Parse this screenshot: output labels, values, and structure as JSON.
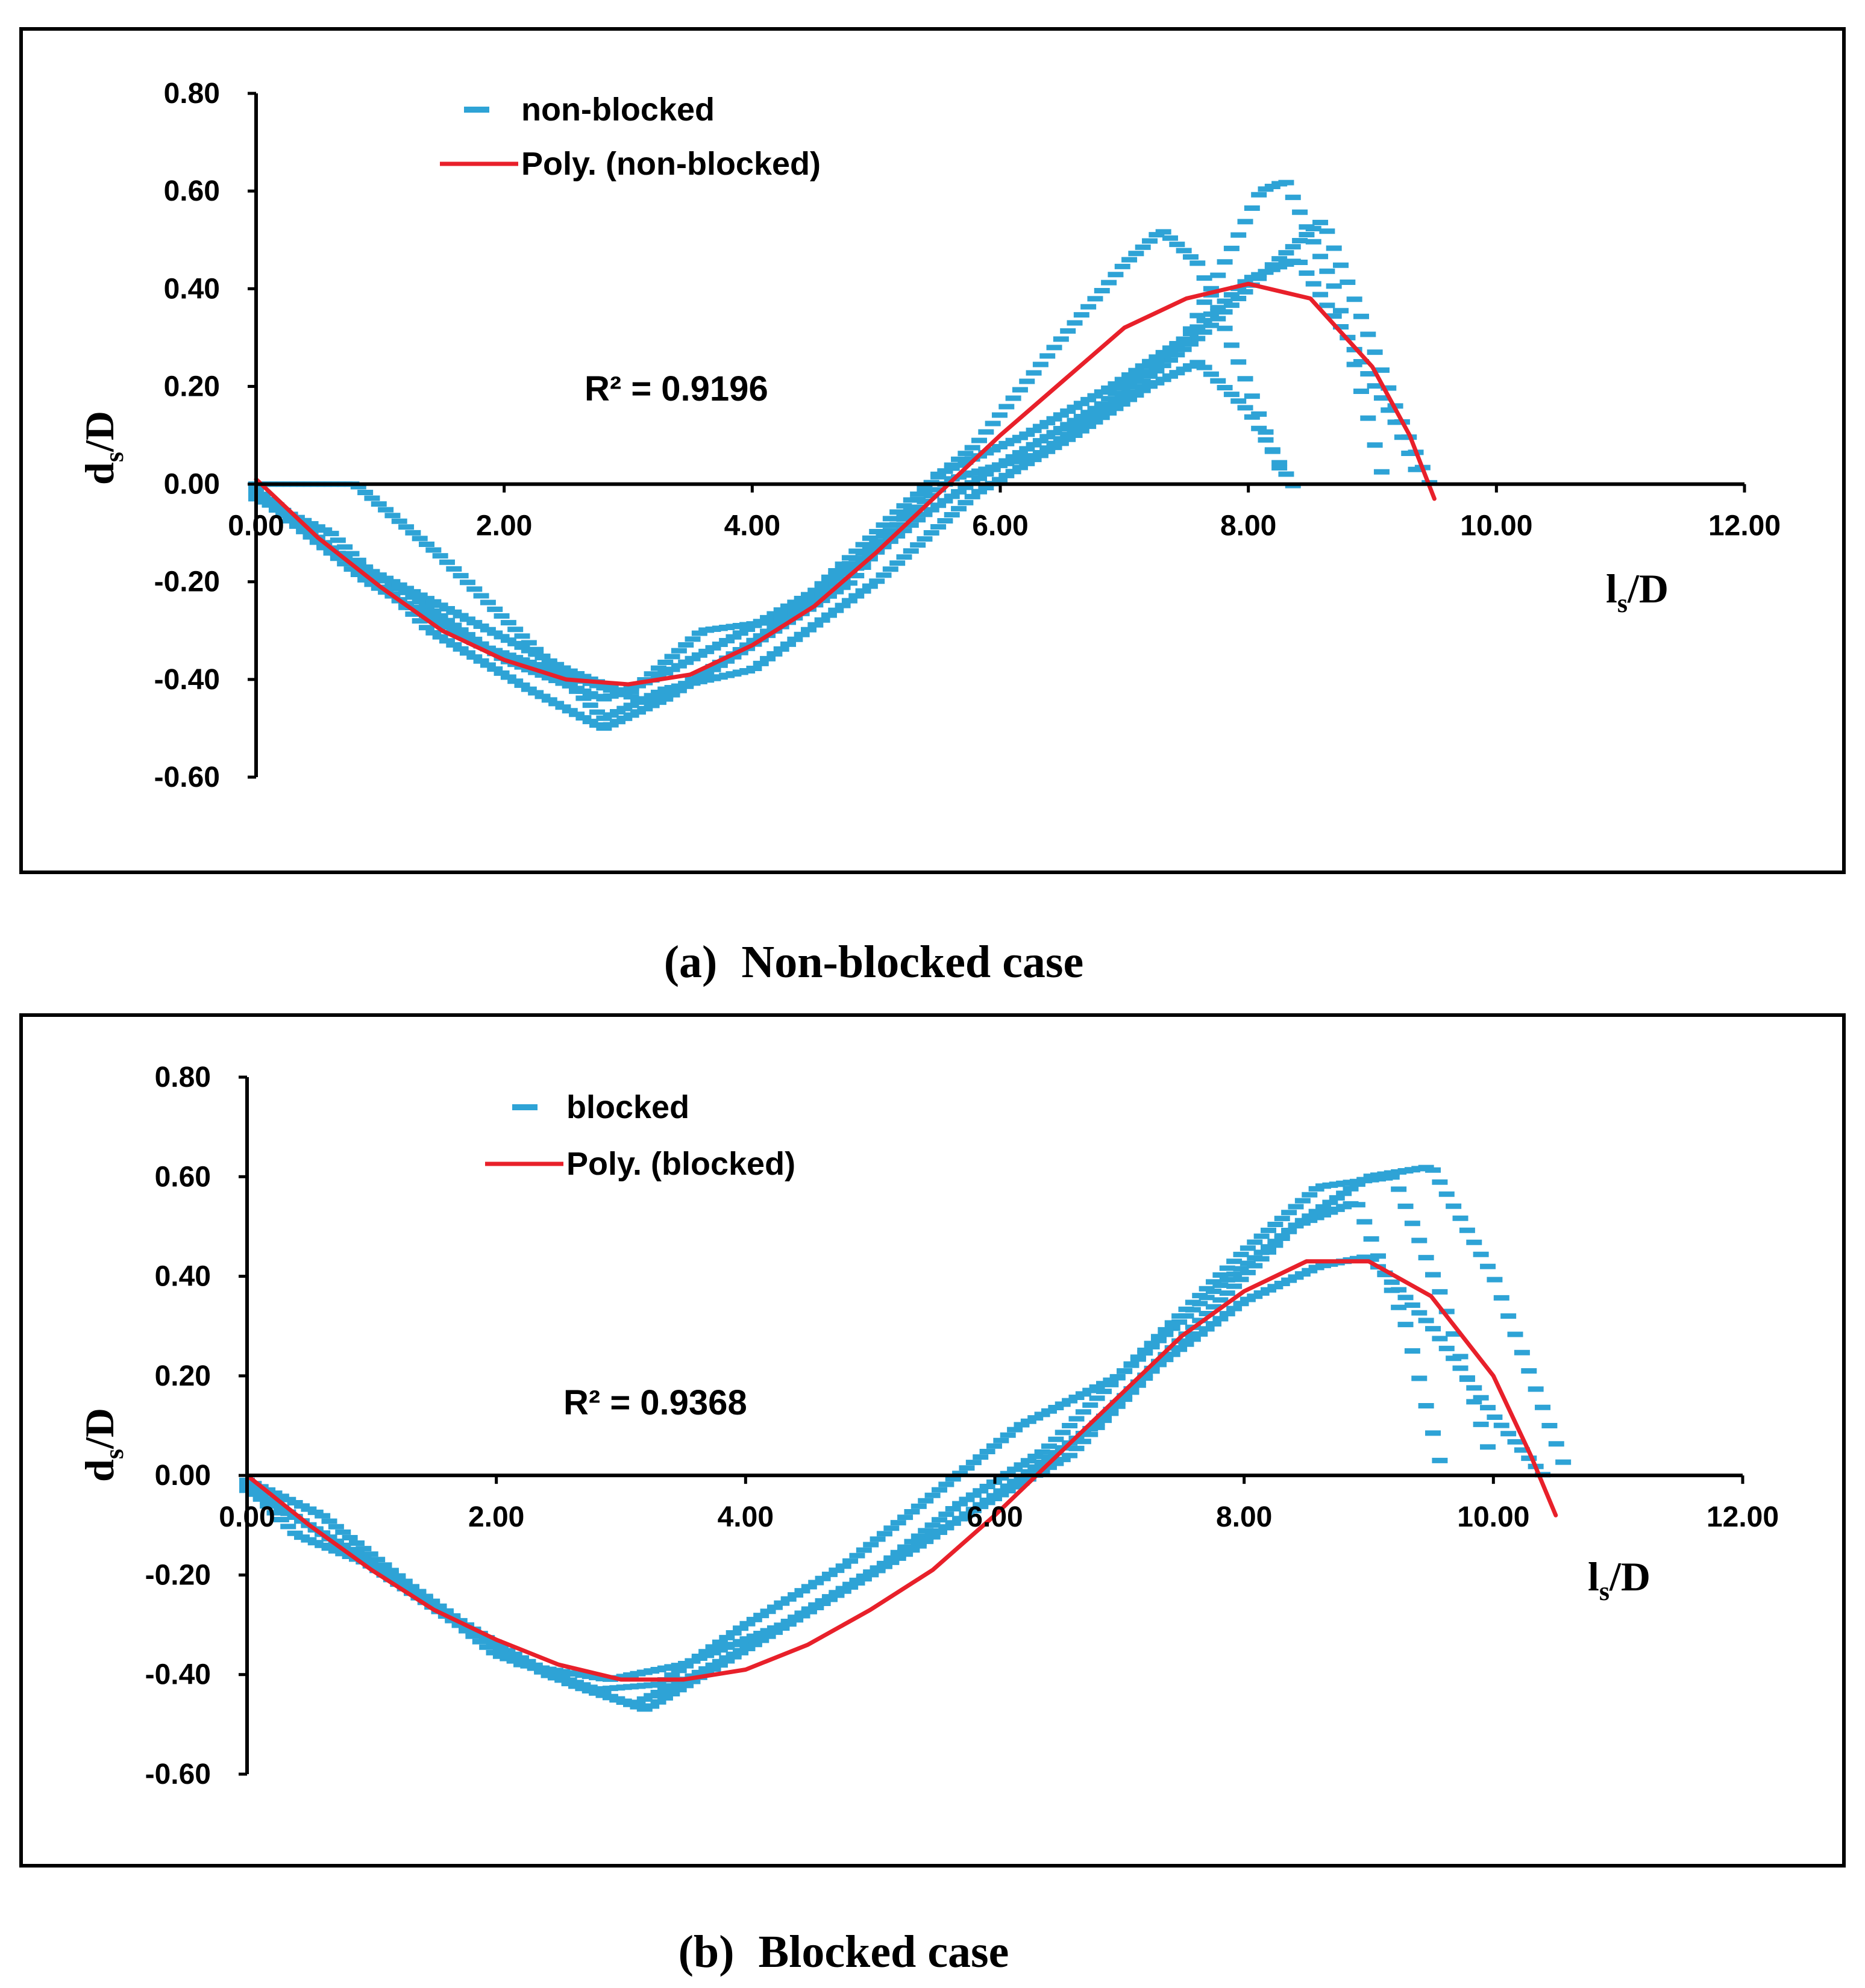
{
  "colors": {
    "data": "#2ea3d6",
    "fit": "#e8202a",
    "axis": "#000000",
    "frame": "#000000"
  },
  "chart_data": [
    {
      "id": "a",
      "type": "scatter",
      "caption_label": "(a)",
      "caption_text": "Non-blocked case",
      "legend": {
        "series": "non-blocked",
        "trend": "Poly. (non-blocked)"
      },
      "r2_text": "R² = 0.9196",
      "xlabel": {
        "main": "l",
        "sub": "s",
        "tail": "/D"
      },
      "ylabel": {
        "main": "d",
        "sub": "s",
        "tail": "/D"
      },
      "xlim": [
        0,
        12
      ],
      "ylim": [
        -0.6,
        0.8
      ],
      "xticks": [
        "0.00",
        "2.00",
        "4.00",
        "6.00",
        "8.00",
        "10.00",
        "12.00"
      ],
      "yticks": [
        "0.80",
        "0.60",
        "0.40",
        "0.20",
        "0.00",
        "-0.20",
        "-0.40",
        "-0.60"
      ],
      "profiles": [
        {
          "x": [
            0,
            0.8,
            1.5,
            2.3,
            2.8,
            3.3,
            4.0,
            5.0,
            5.8,
            6.6,
            7.2,
            7.6,
            8.0,
            8.4
          ],
          "y": [
            0,
            0,
            -0.15,
            -0.35,
            -0.48,
            -0.42,
            -0.38,
            -0.2,
            -0.02,
            0.1,
            0.2,
            0.25,
            0.15,
            -0.02
          ]
        },
        {
          "x": [
            0,
            0.5,
            1.2,
            2.0,
            2.8,
            3.2,
            3.8,
            4.5,
            5.2,
            5.8,
            6.5,
            7.0,
            7.3,
            7.6,
            8.0,
            8.3
          ],
          "y": [
            -0.02,
            -0.12,
            -0.22,
            -0.36,
            -0.44,
            -0.4,
            -0.32,
            -0.22,
            -0.05,
            0.08,
            0.3,
            0.45,
            0.52,
            0.45,
            0.2,
            0.0
          ]
        },
        {
          "x": [
            0,
            0.6,
            1.4,
            2.2,
            2.8,
            3.3,
            4.0,
            4.8,
            5.5,
            6.2,
            6.9,
            7.5,
            8.1,
            8.3,
            8.7,
            9.1
          ],
          "y": [
            -0.03,
            -0.1,
            -0.3,
            -0.42,
            -0.5,
            -0.44,
            -0.33,
            -0.2,
            0.02,
            0.1,
            0.2,
            0.3,
            0.6,
            0.62,
            0.4,
            0.0
          ]
        },
        {
          "x": [
            0,
            0.7,
            1.5,
            2.5,
            3.0,
            3.6,
            4.2,
            5.0,
            5.6,
            6.3,
            7.0,
            7.6,
            8.2,
            8.6,
            8.9,
            9.2,
            9.5
          ],
          "y": [
            -0.01,
            -0.15,
            -0.25,
            -0.38,
            -0.43,
            -0.3,
            -0.28,
            -0.12,
            0.01,
            0.06,
            0.18,
            0.3,
            0.45,
            0.54,
            0.35,
            0.15,
            -0.02
          ]
        },
        {
          "x": [
            0,
            0.9,
            1.8,
            2.6,
            3.2,
            3.9,
            4.6,
            5.4,
            6.0,
            6.8,
            7.5,
            8.0,
            8.4,
            8.8,
            9.2,
            9.4
          ],
          "y": [
            -0.02,
            -0.2,
            -0.33,
            -0.4,
            -0.45,
            -0.34,
            -0.22,
            -0.06,
            0.04,
            0.16,
            0.3,
            0.42,
            0.46,
            0.3,
            0.12,
            0.0
          ]
        }
      ],
      "fit": {
        "x": [
          0,
          0.5,
          1.0,
          1.5,
          2.0,
          2.5,
          3.0,
          3.5,
          4.0,
          4.5,
          5.0,
          5.5,
          6.0,
          6.5,
          7.0,
          7.5,
          8.0,
          8.5,
          9.0,
          9.3,
          9.5
        ],
        "y": [
          0.01,
          -0.11,
          -0.21,
          -0.3,
          -0.36,
          -0.4,
          -0.41,
          -0.39,
          -0.33,
          -0.25,
          -0.14,
          -0.02,
          0.1,
          0.21,
          0.32,
          0.38,
          0.41,
          0.38,
          0.24,
          0.1,
          -0.03
        ]
      }
    },
    {
      "id": "b",
      "type": "scatter",
      "caption_label": "(b)",
      "caption_text": "Blocked case",
      "legend": {
        "series": "blocked",
        "trend": "Poly. (blocked)"
      },
      "r2_text": "R² = 0.9368",
      "xlabel": {
        "main": "l",
        "sub": "s",
        "tail": "/D"
      },
      "ylabel": {
        "main": "d",
        "sub": "s",
        "tail": "/D"
      },
      "xlim": [
        0,
        12
      ],
      "ylim": [
        -0.6,
        0.8
      ],
      "xticks": [
        "0.00",
        "2.00",
        "4.00",
        "6.00",
        "8.00",
        "10.00",
        "12.00"
      ],
      "yticks": [
        "0.80",
        "0.60",
        "0.40",
        "0.20",
        "0.00",
        "-0.20",
        "-0.40",
        "-0.60"
      ],
      "profiles": [
        {
          "x": [
            0,
            0.4,
            1.2,
            2.0,
            2.8,
            3.3,
            4.0,
            4.8,
            5.6,
            6.2,
            7.0,
            7.8,
            8.4,
            8.9,
            9.3,
            9.6
          ],
          "y": [
            -0.02,
            -0.12,
            -0.2,
            -0.36,
            -0.43,
            -0.42,
            -0.3,
            -0.18,
            -0.02,
            0.1,
            0.2,
            0.38,
            0.5,
            0.55,
            0.3,
            0.0
          ]
        },
        {
          "x": [
            0,
            0.6,
            1.5,
            2.4,
            3.1,
            3.6,
            4.2,
            5.0,
            5.7,
            6.4,
            7.2,
            8.0,
            8.6,
            9.2,
            9.6,
            10.0
          ],
          "y": [
            -0.01,
            -0.08,
            -0.26,
            -0.4,
            -0.46,
            -0.4,
            -0.32,
            -0.2,
            -0.06,
            0.05,
            0.25,
            0.45,
            0.58,
            0.6,
            0.35,
            0.02
          ]
        },
        {
          "x": [
            0,
            0.8,
            1.7,
            2.6,
            3.2,
            3.8,
            4.6,
            5.4,
            6.0,
            6.8,
            7.6,
            8.4,
            9.0,
            9.5,
            10.0,
            10.3,
            10.6
          ],
          "y": [
            -0.02,
            -0.15,
            -0.3,
            -0.42,
            -0.47,
            -0.38,
            -0.26,
            -0.14,
            -0.04,
            0.1,
            0.3,
            0.5,
            0.6,
            0.62,
            0.4,
            0.2,
            0.0
          ]
        },
        {
          "x": [
            0,
            0.5,
            1.3,
            2.2,
            2.9,
            3.5,
            4.3,
            5.1,
            5.9,
            6.6,
            7.3,
            8.0,
            8.6,
            9.0,
            9.5,
            10.0,
            10.4
          ],
          "y": [
            -0.03,
            -0.1,
            -0.22,
            -0.38,
            -0.41,
            -0.38,
            -0.3,
            -0.18,
            -0.06,
            0.04,
            0.22,
            0.35,
            0.42,
            0.44,
            0.3,
            0.12,
            0.0
          ]
        }
      ],
      "fit": {
        "x": [
          0,
          0.5,
          1.0,
          1.5,
          2.0,
          2.5,
          3.0,
          3.5,
          4.0,
          4.5,
          5.0,
          5.5,
          6.0,
          6.5,
          7.0,
          7.5,
          8.0,
          8.5,
          9.0,
          9.5,
          10.0,
          10.3,
          10.5
        ],
        "y": [
          0.0,
          -0.1,
          -0.19,
          -0.27,
          -0.33,
          -0.38,
          -0.41,
          -0.41,
          -0.39,
          -0.34,
          -0.27,
          -0.19,
          -0.08,
          0.04,
          0.16,
          0.28,
          0.37,
          0.43,
          0.43,
          0.36,
          0.2,
          0.04,
          -0.08
        ]
      }
    }
  ]
}
